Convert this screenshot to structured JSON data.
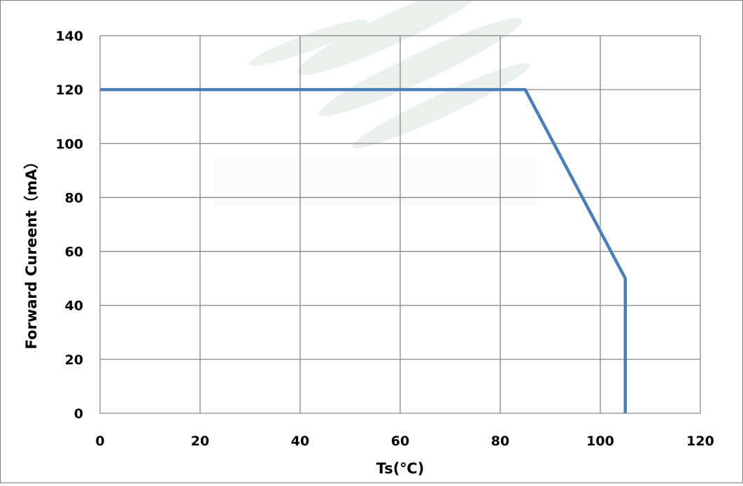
{
  "chart_data": {
    "type": "line",
    "title": "",
    "xlabel": "Ts(℃)",
    "ylabel": "Forward Cureent（mA）",
    "xlim": [
      0,
      120
    ],
    "ylim": [
      0,
      140
    ],
    "xticks": [
      0,
      20,
      40,
      60,
      80,
      100,
      120
    ],
    "yticks": [
      0,
      20,
      40,
      60,
      80,
      100,
      120,
      140
    ],
    "grid": true,
    "legend": "none",
    "series": [
      {
        "color": "#4a7ebb",
        "x": [
          0,
          85,
          105,
          105
        ],
        "y": [
          120,
          120,
          50,
          0
        ]
      }
    ]
  },
  "colors": {
    "line": "#4a7ebb",
    "grid": "#868686",
    "frame": "#7f7f7f"
  }
}
